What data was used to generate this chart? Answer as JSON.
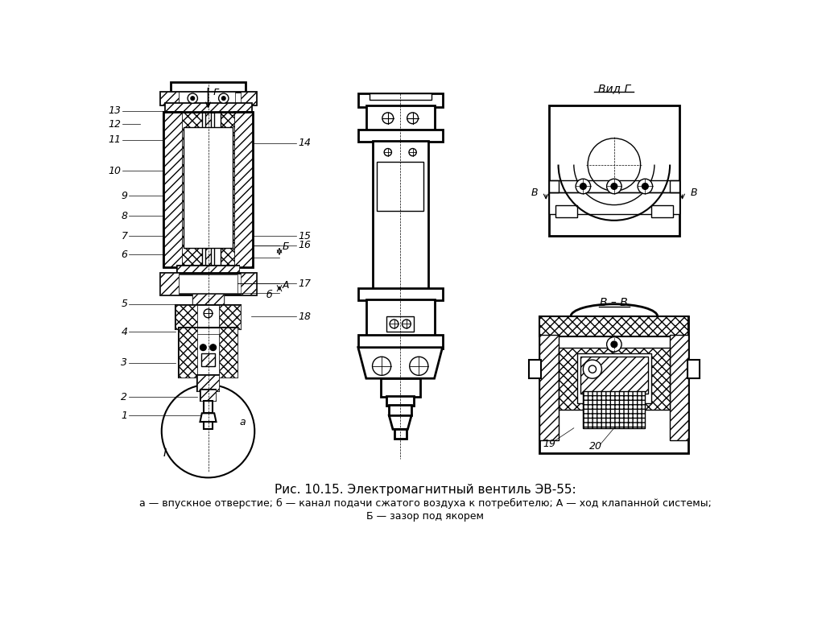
{
  "title": "Рис. 10.15. Электромагнитный вентиль ЭВ-55:",
  "subtitle_line1": "а — впускное отверстие; б — канал подачи сжатого воздуха к потребителю; А — ход клапанной системы;",
  "subtitle_line2": "Б — зазор под якорем",
  "view_g_label": "Вид Г",
  "view_bb_label": "В – В",
  "bg_color": "#ffffff",
  "lc": "#000000",
  "fs_title": 11,
  "fs_sub": 9,
  "fs_num": 9
}
